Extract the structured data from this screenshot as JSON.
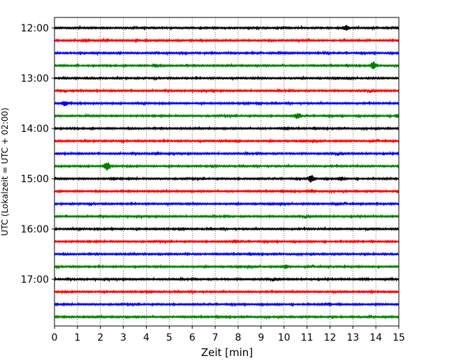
{
  "chart_data": {
    "type": "line",
    "title": "",
    "xlabel": "Zeit  [min]",
    "ylabel": "UTC (Lokalzeit = UTC + 02:00)",
    "xlim": [
      0,
      15
    ],
    "x_ticks": [
      0,
      1,
      2,
      3,
      4,
      5,
      6,
      7,
      8,
      9,
      10,
      11,
      12,
      13,
      14,
      15
    ],
    "y_ticks": [
      "12:00",
      "13:00",
      "14:00",
      "15:00",
      "16:00",
      "17:00"
    ],
    "grid": "vertical dotted",
    "line_colors": [
      "#000000",
      "#ff0000",
      "#0000ff",
      "#008000"
    ],
    "traces": [
      {
        "start": "12:00",
        "events": [
          {
            "x": 12.7,
            "amplitude": 0.55
          }
        ]
      },
      {
        "start": "12:15",
        "events": [
          {
            "x": 1.3,
            "amplitude": 0.25
          }
        ]
      },
      {
        "start": "12:30",
        "events": [
          {
            "x": 10.0,
            "amplitude": 0.2
          }
        ]
      },
      {
        "start": "12:45",
        "events": [
          {
            "x": 4.4,
            "amplitude": 0.4
          },
          {
            "x": 13.9,
            "amplitude": 0.75
          }
        ]
      },
      {
        "start": "13:00",
        "events": [
          {
            "x": 12.8,
            "amplitude": 0.35
          }
        ]
      },
      {
        "start": "13:15",
        "events": [
          {
            "x": 6.9,
            "amplitude": 0.2
          }
        ]
      },
      {
        "start": "13:30",
        "events": [
          {
            "x": 0.45,
            "amplitude": 0.6
          },
          {
            "x": 8.9,
            "amplitude": 0.3
          }
        ]
      },
      {
        "start": "13:45",
        "events": [
          {
            "x": 10.6,
            "amplitude": 0.6
          },
          {
            "x": 15.0,
            "amplitude": 0.6
          }
        ]
      },
      {
        "start": "14:00",
        "events": [
          {
            "x": 10.1,
            "amplitude": 0.25
          }
        ]
      },
      {
        "start": "14:15",
        "events": [
          {
            "x": 8.0,
            "amplitude": 0.3
          }
        ]
      },
      {
        "start": "14:30",
        "events": [
          {
            "x": 4.5,
            "amplitude": 0.35
          }
        ]
      },
      {
        "start": "14:45",
        "events": [
          {
            "x": 2.3,
            "amplitude": 0.8
          }
        ]
      },
      {
        "start": "15:00",
        "events": [
          {
            "x": 2.6,
            "amplitude": 0.35
          },
          {
            "x": 11.2,
            "amplitude": 0.75
          },
          {
            "x": 12.5,
            "amplitude": 0.4
          }
        ]
      },
      {
        "start": "15:15",
        "events": [
          {
            "x": 11.2,
            "amplitude": 0.4
          }
        ]
      },
      {
        "start": "15:30",
        "events": [
          {
            "x": 12.2,
            "amplitude": 0.3
          }
        ]
      },
      {
        "start": "15:45",
        "events": []
      },
      {
        "start": "16:00",
        "events": [
          {
            "x": 2.5,
            "amplitude": 0.2
          }
        ]
      },
      {
        "start": "16:15",
        "events": [
          {
            "x": 7.9,
            "amplitude": 0.35
          }
        ]
      },
      {
        "start": "16:30",
        "events": [
          {
            "x": 5.8,
            "amplitude": 0.2
          }
        ]
      },
      {
        "start": "16:45",
        "events": [
          {
            "x": 10.1,
            "amplitude": 0.45
          }
        ]
      },
      {
        "start": "17:00",
        "events": [
          {
            "x": 9.7,
            "amplitude": 0.3
          },
          {
            "x": 13.5,
            "amplitude": 0.25
          }
        ]
      },
      {
        "start": "17:15",
        "events": [
          {
            "x": 13.8,
            "amplitude": 0.2
          }
        ]
      },
      {
        "start": "17:30",
        "events": [
          {
            "x": 11.9,
            "amplitude": 0.3
          }
        ]
      },
      {
        "start": "17:45",
        "events": [
          {
            "x": 14.7,
            "amplitude": 0.15
          }
        ]
      }
    ]
  }
}
